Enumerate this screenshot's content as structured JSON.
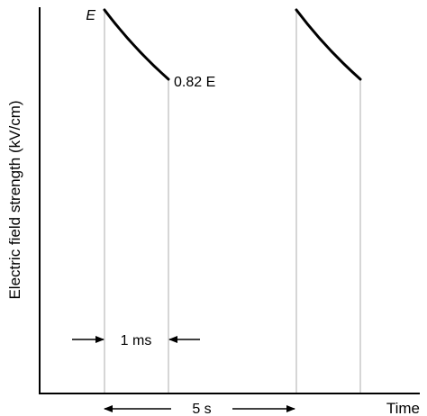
{
  "chart_data": {
    "type": "line",
    "xlabel": "Time",
    "ylabel": "Electric field strength (kV/cm)",
    "grid": false,
    "legend": "none",
    "series": [
      {
        "values": [
          {
            "x": 0,
            "y": 1.0
          },
          {
            "x": 1,
            "y": 0.82
          }
        ]
      },
      {
        "values": [
          {
            "x": 5,
            "y": 1.0
          },
          {
            "x": 6,
            "y": 0.82
          }
        ]
      }
    ],
    "annotations": {
      "start_level": "E",
      "end_level": "0.82 E",
      "pulse_width": "1 ms",
      "pulse_interval": "5 s"
    },
    "colors": {
      "axis": "#000000",
      "pulse_line": "#000000",
      "guide_line": "#c8c8c8"
    }
  }
}
